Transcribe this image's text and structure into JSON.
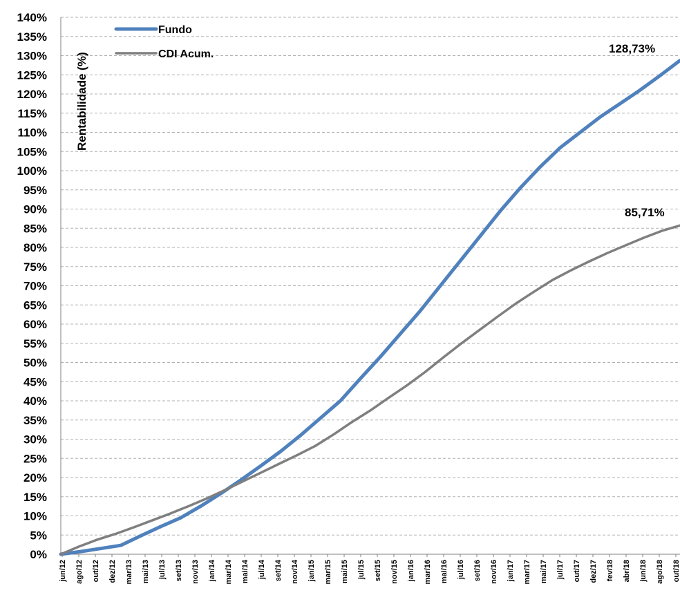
{
  "chart_data": {
    "type": "line",
    "title": "",
    "xlabel": "",
    "ylabel": "Rentabilidade (%)",
    "ylim": [
      0,
      140
    ],
    "y_ticks": [
      "0%",
      "5%",
      "10%",
      "15%",
      "20%",
      "25%",
      "30%",
      "35%",
      "40%",
      "45%",
      "50%",
      "55%",
      "60%",
      "65%",
      "70%",
      "75%",
      "80%",
      "85%",
      "90%",
      "95%",
      "100%",
      "105%",
      "110%",
      "115%",
      "120%",
      "125%",
      "130%",
      "135%",
      "140%"
    ],
    "x_ticks": [
      "jun/12",
      "ago/12",
      "out/12",
      "dez/12",
      "mar/13",
      "mai/13",
      "jul/13",
      "set/13",
      "nov/13",
      "jan/14",
      "mar/14",
      "mai/14",
      "jul/14",
      "set/14",
      "nov/14",
      "jan/15",
      "mar/15",
      "mai/15",
      "jul/15",
      "set/15",
      "nov/15",
      "jan/16",
      "mar/16",
      "mai/16",
      "jul/16",
      "set/16",
      "nov/16",
      "jan/17",
      "mar/17",
      "mai/17",
      "jul/17",
      "out/17",
      "dez/17",
      "fev/18",
      "abr/18",
      "jun/18",
      "ago/18",
      "out/18"
    ],
    "grid": true,
    "legend_position": "top-left",
    "series": [
      {
        "name": "Fundo",
        "color": "#4f81bd",
        "values": [
          0,
          0.7,
          1.5,
          2.3,
          4.8,
          7.2,
          9.5,
          12.5,
          15.8,
          19.3,
          23,
          26.8,
          31,
          35.5,
          40,
          45.8,
          51.5,
          57.5,
          63.5,
          70,
          76.5,
          83,
          89.5,
          95.5,
          101,
          106,
          110,
          114,
          117.5,
          121,
          124.8,
          128.73
        ]
      },
      {
        "name": "CDI Acum.",
        "color": "#7f7f7f",
        "values": [
          0,
          2,
          3.8,
          5.3,
          7,
          8.8,
          10.6,
          12.5,
          14.5,
          16.7,
          19,
          21.3,
          23.6,
          25.9,
          28.3,
          31.3,
          34.5,
          37.5,
          40.8,
          44,
          47.5,
          51.3,
          55,
          58.5,
          62,
          65.4,
          68.5,
          71.5,
          74,
          76.3,
          78.5,
          80.5,
          82.5,
          84.3,
          85.71
        ]
      }
    ],
    "annotations": [
      "128,73%",
      "85,71%"
    ]
  }
}
